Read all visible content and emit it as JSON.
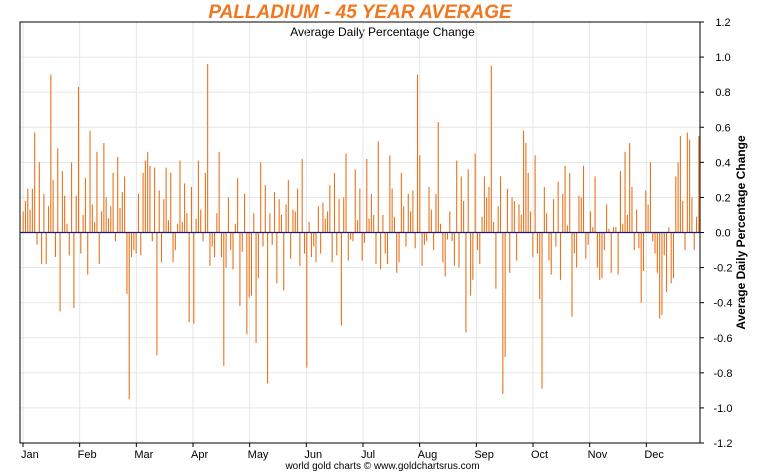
{
  "chart_data": {
    "type": "bar",
    "title": "PALLADIUM - 45 YEAR AVERAGE",
    "subtitle": "Average Daily Percentage Change",
    "ylabel": "Average Daily Percentage Change",
    "footer": "world gold charts © www.goldchartsrus.com",
    "ylim": [
      -1.2,
      1.2
    ],
    "yticks": [
      "1.2",
      "1.0",
      "0.8",
      "0.6",
      "0.4",
      "0.2",
      "0.0",
      "-0.2",
      "-0.4",
      "-0.6",
      "-0.8",
      "-1.0",
      "-1.2"
    ],
    "months": [
      "Jan",
      "Feb",
      "Mar",
      "Apr",
      "May",
      "Jun",
      "Jul",
      "Aug",
      "Sep",
      "Oct",
      "Nov",
      "Dec"
    ],
    "grid": true,
    "colors": {
      "title": "#f07820",
      "bar": "#e8731c",
      "zero_line": "#1a1a7a",
      "grid": "#e6e6e6"
    },
    "values": [
      0.12,
      0.18,
      0.25,
      0.13,
      0.25,
      0.57,
      -0.07,
      0.4,
      -0.18,
      0.22,
      -0.18,
      0.15,
      0.9,
      0.3,
      -0.14,
      0.48,
      -0.45,
      0.35,
      0.21,
      0.05,
      -0.13,
      0.4,
      -0.43,
      0.21,
      0.83,
      -0.12,
      0.1,
      0.31,
      -0.24,
      0.58,
      0.16,
      0.06,
      0.46,
      -0.18,
      0.12,
      0.51,
      0.2,
      0.08,
      0.15,
      0.34,
      -0.05,
      0.43,
      0.14,
      0.23,
      0.32,
      -0.35,
      -0.95,
      -0.14,
      -0.1,
      -0.12,
      0.22,
      -0.13,
      0.34,
      0.41,
      0.46,
      0.38,
      -0.05,
      0.37,
      -0.7,
      0.24,
      -0.17,
      0.19,
      0.37,
      0.07,
      0.34,
      -0.17,
      -0.1,
      0.05,
      0.41,
      0.06,
      0.28,
      0.11,
      -0.51,
      0.26,
      -0.52,
      0.08,
      0.41,
      0.13,
      -0.05,
      0.34,
      0.96,
      -0.19,
      -0.08,
      -0.14,
      0.11,
      0.46,
      -0.14,
      -0.76,
      -0.2,
      0.2,
      -0.1,
      -0.21,
      0.05,
      0.31,
      -0.42,
      -0.11,
      0.22,
      -0.58,
      -0.37,
      -0.36,
      0.11,
      -0.63,
      -0.26,
      0.4,
      -0.08,
      0.27,
      -0.86,
      0.11,
      -0.07,
      0.23,
      -0.29,
      0.19,
      0.1,
      -0.33,
      0.16,
      0.3,
      -0.15,
      0.13,
      0.12,
      0.25,
      -0.19,
      0.42,
      -0.12,
      -0.77,
      0.06,
      -0.14,
      -0.08,
      -0.17,
      0.15,
      -0.12,
      0.17,
      0.08,
      0.12,
      0.27,
      -0.17,
      0.34,
      -0.13,
      0.19,
      -0.53,
      0.2,
      0.45,
      -0.16,
      -0.04,
      -0.05,
      0.36,
      0.07,
      0.25,
      -0.16,
      -0.06,
      0.42,
      0.08,
      0.22,
      0.1,
      -0.18,
      0.52,
      -0.21,
      0.1,
      -0.12,
      -0.18,
      0.44,
      0.25,
      0.09,
      -0.23,
      -0.17,
      0.34,
      0.15,
      -0.08,
      0.22,
      0.12,
      0.24,
      -0.09,
      0.9,
      0.44,
      -0.19,
      -0.07,
      -0.05,
      0.26,
      0.13,
      -0.1,
      0.22,
      0.63,
      0.05,
      -0.17,
      -0.25,
      -0.04,
      0.12,
      -0.05,
      -0.19,
      0.41,
      -0.2,
      0.32,
      0.18,
      -0.57,
      0.36,
      -0.36,
      -0.27,
      0.45,
      -0.1,
      -0.18,
      0.09,
      0.32,
      0.2,
      0.26,
      0.95,
      0.06,
      -0.32,
      0.15,
      0.32,
      -0.92,
      -0.71,
      0.25,
      -0.23,
      0.2,
      0.18,
      -0.16,
      0.16,
      0.1,
      0.58,
      0.51,
      0.34,
      0.12,
      -0.14,
      0.44,
      -0.12,
      -0.38,
      -0.89,
      0.26,
      0.11,
      -0.16,
      -0.24,
      0.19,
      -0.08,
      0.29,
      -0.27,
      0.22,
      0.38,
      0.04,
      0.34,
      -0.48,
      -0.12,
      -0.2,
      0.21,
      0.2,
      0.38,
      -0.15,
      -0.07,
      0.12,
      0.03,
      0.32,
      -0.2,
      -0.27,
      -0.26,
      -0.1,
      0.16,
      0.02,
      -0.23,
      0.03,
      0.03,
      -0.24,
      0.35,
      0.05,
      0.46,
      0.1,
      0.51,
      0.26,
      -0.1,
      0.13,
      -0.09,
      -0.4,
      -0.22,
      0.24,
      0.16,
      0.4,
      -0.05,
      -0.12,
      -0.23,
      -0.49,
      -0.47,
      -0.13,
      -0.34,
      0.03,
      -0.29,
      -0.26,
      0.32,
      0.4,
      0.55,
      0.18,
      -0.1,
      0.57,
      0.53,
      0.2,
      -0.1,
      0.09,
      0.55
    ]
  }
}
